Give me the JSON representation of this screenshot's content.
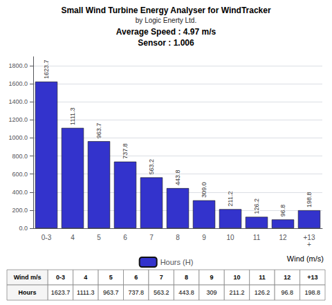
{
  "chart_data": {
    "type": "bar",
    "title": "Small Wind Turbine Energy Analyser for WindTracker",
    "subtitle": "by Logic Enerty Ltd.",
    "annotations": [
      "Average Speed : 4.97 m/s",
      "Sensor : 1.006"
    ],
    "x_label": "Wind (m/s)",
    "categories": [
      "0-3",
      "4",
      "5",
      "6",
      "7",
      "8",
      "9",
      "10",
      "11",
      "12",
      "+13\n+"
    ],
    "series": [
      {
        "name": "Hours (H)",
        "color": "#3333cc",
        "values": [
          1623.7,
          1111.3,
          963.7,
          737.8,
          563.2,
          443.8,
          309.0,
          211.2,
          126.2,
          96.8,
          198.8
        ],
        "value_labels": [
          "1623.7",
          "1111.3",
          "963.7",
          "737.8",
          "563.2",
          "443.8",
          "309.0",
          "211.2",
          "126.2",
          "96.8",
          "198.8"
        ]
      }
    ],
    "ylim": [
      0,
      1900
    ],
    "yticks": [
      {
        "value": 0,
        "label": "0.0"
      },
      {
        "value": 200,
        "label": "200.0"
      },
      {
        "value": 400,
        "label": "400.0"
      },
      {
        "value": 600,
        "label": "600.0"
      },
      {
        "value": 800,
        "label": "800.0"
      },
      {
        "value": 1000,
        "label": "1000.0"
      },
      {
        "value": 1200,
        "label": "1200.0"
      },
      {
        "value": 1400,
        "label": "1400.0"
      },
      {
        "value": 1600,
        "label": "1600.0"
      },
      {
        "value": 1800,
        "label": "1800.0"
      }
    ],
    "grid": true,
    "legend": "bottom",
    "data_labels": true,
    "table": [
      [
        "Wind m/s",
        "0-3",
        "4",
        "5",
        "6",
        "7",
        "8",
        "9",
        "10",
        "11",
        "12",
        "+13"
      ],
      [
        "Hours",
        "1623.7",
        "1111.3",
        "963.7",
        "737.8",
        "563.2",
        "443.8",
        "309",
        "211.2",
        "126.2",
        "96.8",
        "198.8"
      ]
    ]
  }
}
